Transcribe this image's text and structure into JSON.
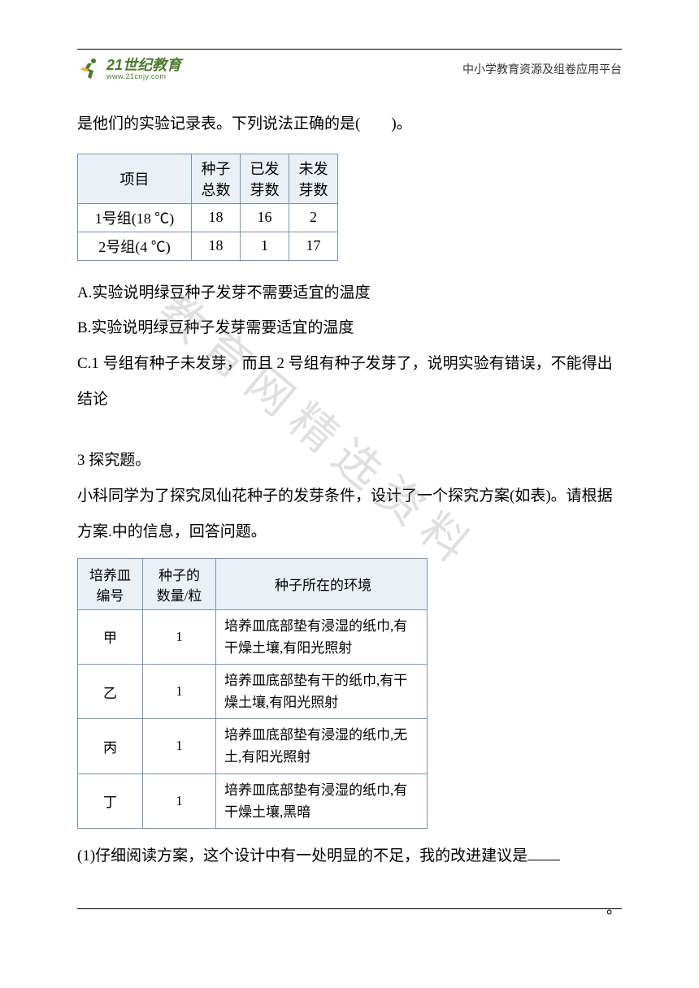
{
  "header": {
    "logo_text": "21世纪教育",
    "logo_url": "www.21cnjy.com",
    "right_text": "中小学教育资源及组卷应用平台"
  },
  "intro_line": "是他们的实验记录表。下列说法正确的是(　　)。",
  "table1": {
    "headers": [
      "项目",
      "种子总数",
      "已发芽数",
      "未发芽数"
    ],
    "rows": [
      [
        "1号组(18 ℃)",
        "18",
        "16",
        "2"
      ],
      [
        "2号组(4 ℃)",
        "18",
        "1",
        "17"
      ]
    ],
    "header_bg": "#eaf0f6",
    "border_color": "#7a93b0"
  },
  "options": {
    "a": "A.实验说明绿豆种子发芽不需要适宜的温度",
    "b": "B.实验说明绿豆种子发芽需要适宜的温度",
    "c": "C.1 号组有种子未发芽，而且 2 号组有种子发芽了，说明实验有错误，不能得出结论"
  },
  "q3_title": "3 探究题。",
  "q3_body1": "小科同学为了探究凤仙花种子的发芽条件，设计了一个探究方案(如表)。请根据方案.中的信息，回答问题。",
  "table2": {
    "headers": [
      "培养皿编号",
      "种子的数量/粒",
      "种子所在的环境"
    ],
    "rows": [
      {
        "id": "甲",
        "qty": "1",
        "env": "培养皿底部垫有浸湿的纸巾,有干燥土壤,有阳光照射"
      },
      {
        "id": "乙",
        "qty": "1",
        "env": "培养皿底部垫有干的纸巾,有干燥土壤,有阳光照射"
      },
      {
        "id": "丙",
        "qty": "1",
        "env": "培养皿底部垫有浸湿的纸巾,无土,有阳光照射"
      },
      {
        "id": "丁",
        "qty": "1",
        "env": "培养皿底部垫有浸湿的纸巾,有干燥土壤,黑暗"
      }
    ],
    "header_bg": "#eaf0f6",
    "border_color": "#7a93b0"
  },
  "q3_sub1": "(1)仔细阅读方案，这个设计中有一处明显的不足，我的改进建议是",
  "watermark": "教育网精选资料",
  "colors": {
    "text": "#000000",
    "logo_green": "#4a7a2a",
    "watermark": "rgba(140,140,140,0.28)"
  }
}
